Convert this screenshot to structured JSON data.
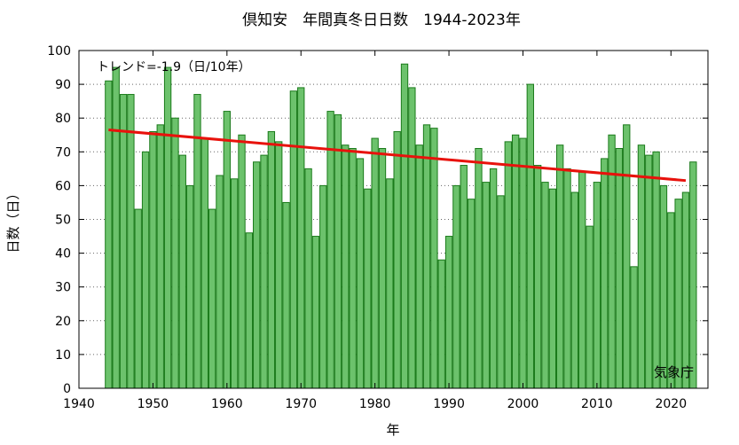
{
  "chart_data": {
    "type": "bar",
    "title": "倶知安　年間真冬日日数　1944-2023年",
    "xlabel": "年",
    "ylabel": "日数（日）",
    "trend_label": "トレンド=-1.9（日/10年）",
    "source": "気象庁",
    "xlim": [
      1940,
      2025
    ],
    "ylim": [
      0,
      100
    ],
    "x_ticks": [
      1940,
      1950,
      1960,
      1970,
      1980,
      1990,
      2000,
      2010,
      2020
    ],
    "y_ticks": [
      0,
      10,
      20,
      30,
      40,
      50,
      60,
      70,
      80,
      90,
      100
    ],
    "grid": true,
    "colors": {
      "bar_fill": "#6cc26c",
      "bar_stroke": "#1a7a1a",
      "trend": "#e8120c"
    },
    "x": [
      1944,
      1945,
      1946,
      1947,
      1948,
      1949,
      1950,
      1951,
      1952,
      1953,
      1954,
      1955,
      1956,
      1957,
      1958,
      1959,
      1960,
      1961,
      1962,
      1963,
      1964,
      1965,
      1966,
      1967,
      1968,
      1969,
      1970,
      1971,
      1972,
      1973,
      1974,
      1975,
      1976,
      1977,
      1978,
      1979,
      1980,
      1981,
      1982,
      1983,
      1984,
      1985,
      1986,
      1987,
      1988,
      1989,
      1990,
      1991,
      1992,
      1993,
      1994,
      1995,
      1996,
      1997,
      1998,
      1999,
      2000,
      2001,
      2002,
      2003,
      2004,
      2005,
      2006,
      2007,
      2008,
      2009,
      2010,
      2011,
      2012,
      2013,
      2014,
      2015,
      2016,
      2017,
      2018,
      2019,
      2020,
      2021,
      2022,
      2023
    ],
    "values": [
      91,
      95,
      87,
      87,
      53,
      70,
      76,
      78,
      95,
      80,
      69,
      60,
      87,
      74,
      53,
      63,
      82,
      62,
      75,
      46,
      67,
      69,
      76,
      73,
      55,
      88,
      89,
      65,
      45,
      60,
      82,
      81,
      72,
      71,
      68,
      59,
      74,
      71,
      62,
      76,
      96,
      89,
      72,
      78,
      77,
      38,
      45,
      60,
      66,
      56,
      71,
      61,
      65,
      57,
      73,
      75,
      74,
      90,
      66,
      61,
      59,
      72,
      65,
      58,
      64,
      48,
      61,
      68,
      75,
      71,
      78,
      36,
      72,
      69,
      70,
      60,
      52,
      56,
      58,
      67
    ],
    "trend": {
      "x": [
        1944,
        2022
      ],
      "y": [
        76.5,
        61.5
      ]
    }
  }
}
